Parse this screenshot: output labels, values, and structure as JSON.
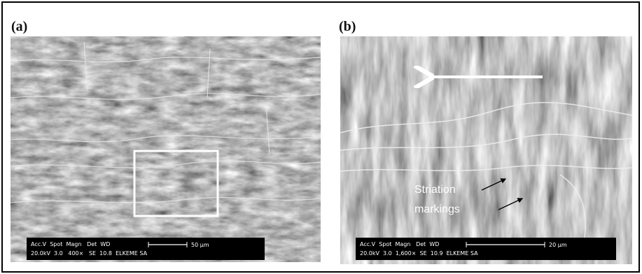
{
  "panels": [
    {
      "label": "(a)",
      "info_header": "Acc.V  Spot  Magn   Det  WD",
      "info_values": "20.0kV  3.0   400×   SE  10.8  ELKEME SA",
      "scale": "50 μm"
    },
    {
      "label": "(b)",
      "info_header": "Acc.V  Spot  Magn   Det  WD",
      "info_values": "20.0kV  3.0  1,600×  SE  10.9  ELKEME SA",
      "scale": "20 μm",
      "annotation": [
        "Striation",
        "markings"
      ]
    }
  ]
}
